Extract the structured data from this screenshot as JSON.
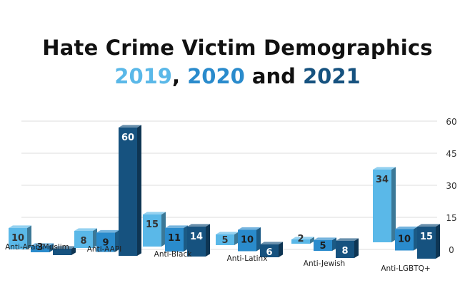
{
  "title": "Hate Crime Victim Demographics",
  "subtitle": {
    "y2019": "2019",
    "sep1": ", ",
    "y2020": "2020",
    "sep2": " and ",
    "y2021": "2021"
  },
  "colors": {
    "y2019": "#5ab8e8",
    "y2020": "#2a8bcc",
    "y2021": "#16527f"
  },
  "chart_data": {
    "type": "bar",
    "title": "Hate Crime Victim Demographics",
    "categories": [
      "Anti-Arab/Muslim",
      "Anti-AAPI",
      "Anti-Black",
      "Anti-Latinx",
      "Anti-Jewish",
      "Anti-LGBTQ+"
    ],
    "series": [
      {
        "name": "2019",
        "values": [
          10,
          8,
          15,
          5,
          2,
          34
        ]
      },
      {
        "name": "2020",
        "values": [
          3,
          9,
          11,
          10,
          5,
          10
        ]
      },
      {
        "name": "2021",
        "values": [
          3,
          60,
          14,
          6,
          8,
          15
        ]
      }
    ],
    "data_labels": [
      [
        "10",
        "3",
        ""
      ],
      [
        "8",
        "9",
        "60"
      ],
      [
        "15",
        "11",
        "14"
      ],
      [
        "5",
        "10",
        "6"
      ],
      [
        "2",
        "5",
        "8"
      ],
      [
        "34",
        "10",
        "15"
      ]
    ],
    "y_ticks": [
      0,
      15,
      30,
      45,
      60
    ],
    "ylim": [
      0,
      65
    ],
    "grid": true,
    "axis_position": "right"
  }
}
